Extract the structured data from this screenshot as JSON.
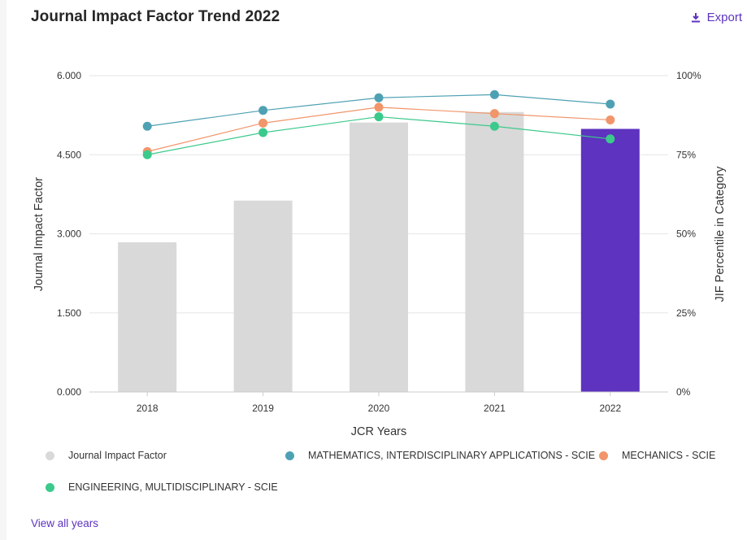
{
  "header": {
    "title": "Journal Impact Factor Trend 2022",
    "export_label": "Export"
  },
  "footer": {
    "view_all_label": "View all years"
  },
  "legend": [
    {
      "label": "Journal Impact Factor",
      "color": "#d9d9d9"
    },
    {
      "label": "MATHEMATICS, INTERDISCIPLINARY APPLICATIONS - SCIE",
      "color": "#4ea1b3"
    },
    {
      "label": "MECHANICS - SCIE",
      "color": "#f1956a"
    },
    {
      "label": "ENGINEERING, MULTIDISCIPLINARY - SCIE",
      "color": "#3cc98c"
    }
  ],
  "chart_data": {
    "type": "bar",
    "xlabel": "JCR Years",
    "ylabel": "Journal Impact Factor",
    "y2label": "JIF Percentile in Category",
    "categories": [
      "2018",
      "2019",
      "2020",
      "2021",
      "2022"
    ],
    "ylim": [
      0,
      6
    ],
    "yticks": [
      "0.000",
      "1.500",
      "3.000",
      "4.500",
      "6.000"
    ],
    "y2lim": [
      0,
      100
    ],
    "y2ticks": [
      "0%",
      "25%",
      "50%",
      "75%",
      "100%"
    ],
    "grid": true,
    "legend_position": "bottom",
    "bars": {
      "name": "Journal Impact Factor",
      "values": [
        2.84,
        3.63,
        5.11,
        5.31,
        4.99
      ],
      "colors": [
        "#d9d9d9",
        "#d9d9d9",
        "#d9d9d9",
        "#d9d9d9",
        "#5d33bf"
      ]
    },
    "series": [
      {
        "name": "MATHEMATICS, INTERDISCIPLINARY APPLICATIONS - SCIE",
        "axis": "right",
        "color": "#4ea1b3",
        "values": [
          84,
          89,
          93,
          94,
          91
        ]
      },
      {
        "name": "MECHANICS - SCIE",
        "axis": "right",
        "color": "#f1956a",
        "values": [
          76,
          85,
          90,
          88,
          86
        ]
      },
      {
        "name": "ENGINEERING, MULTIDISCIPLINARY - SCIE",
        "axis": "right",
        "color": "#3cc98c",
        "values": [
          75,
          82,
          87,
          84,
          80
        ]
      }
    ]
  }
}
